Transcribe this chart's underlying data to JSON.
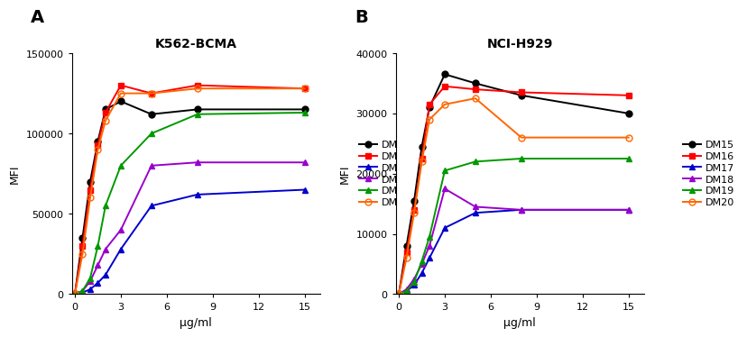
{
  "panel_A": {
    "title": "K562-BCMA",
    "xlabel": "μg/ml",
    "ylabel": "MFI",
    "ylim": [
      0,
      150000
    ],
    "yticks": [
      0,
      50000,
      100000,
      150000
    ],
    "xlim": [
      -0.2,
      16
    ],
    "xticks": [
      0,
      3,
      6,
      9,
      12,
      15
    ],
    "xdata": [
      0,
      0.5,
      1,
      1.5,
      2,
      3,
      5,
      8,
      15
    ],
    "series": [
      {
        "label": "DM15",
        "color": "#000000",
        "marker": "o",
        "filled": true,
        "values": [
          0,
          35000,
          70000,
          95000,
          115000,
          120000,
          112000,
          115000,
          115000
        ]
      },
      {
        "label": "DM16",
        "color": "#ff0000",
        "marker": "s",
        "filled": true,
        "values": [
          0,
          30000,
          65000,
          93000,
          113000,
          130000,
          125000,
          130000,
          128000
        ]
      },
      {
        "label": "DM17",
        "color": "#0000cc",
        "marker": "^",
        "filled": true,
        "values": [
          0,
          1000,
          3000,
          7000,
          12000,
          28000,
          55000,
          62000,
          65000
        ]
      },
      {
        "label": "DM18",
        "color": "#9900cc",
        "marker": "^",
        "filled": true,
        "values": [
          0,
          2000,
          8000,
          18000,
          28000,
          40000,
          80000,
          82000,
          82000
        ]
      },
      {
        "label": "DM19",
        "color": "#009900",
        "marker": "^",
        "filled": true,
        "values": [
          0,
          2000,
          10000,
          30000,
          55000,
          80000,
          100000,
          112000,
          113000
        ]
      },
      {
        "label": "DM20",
        "color": "#ff6600",
        "marker": "o",
        "filled": false,
        "values": [
          0,
          25000,
          60000,
          90000,
          108000,
          125000,
          125000,
          128000,
          128000
        ]
      }
    ]
  },
  "panel_B": {
    "title": "NCI-H929",
    "xlabel": "μg/ml",
    "ylabel": "MFI",
    "ylim": [
      0,
      40000
    ],
    "yticks": [
      0,
      10000,
      20000,
      30000,
      40000
    ],
    "xlim": [
      -0.2,
      16
    ],
    "xticks": [
      0,
      3,
      6,
      9,
      12,
      15
    ],
    "xdata": [
      0,
      0.5,
      1,
      1.5,
      2,
      3,
      5,
      8,
      15
    ],
    "series": [
      {
        "label": "DM15",
        "color": "#000000",
        "marker": "o",
        "filled": true,
        "values": [
          0,
          8000,
          15500,
          24500,
          31000,
          36500,
          35000,
          33000,
          30000
        ]
      },
      {
        "label": "DM16",
        "color": "#ff0000",
        "marker": "s",
        "filled": true,
        "values": [
          0,
          7000,
          14000,
          22500,
          31500,
          34500,
          34000,
          33500,
          33000
        ]
      },
      {
        "label": "DM17",
        "color": "#0000cc",
        "marker": "^",
        "filled": true,
        "values": [
          0,
          500,
          1500,
          3500,
          6000,
          11000,
          13500,
          14000,
          14000
        ]
      },
      {
        "label": "DM18",
        "color": "#9900cc",
        "marker": "^",
        "filled": true,
        "values": [
          0,
          800,
          2500,
          5000,
          8000,
          17500,
          14500,
          14000,
          14000
        ]
      },
      {
        "label": "DM19",
        "color": "#009900",
        "marker": "^",
        "filled": true,
        "values": [
          0,
          500,
          2000,
          5500,
          9500,
          20500,
          22000,
          22500,
          22500
        ]
      },
      {
        "label": "DM20",
        "color": "#ff6600",
        "marker": "o",
        "filled": false,
        "values": [
          0,
          6000,
          13500,
          22000,
          29000,
          31500,
          32500,
          26000,
          26000
        ]
      }
    ]
  },
  "background_color": "#ffffff",
  "label_fontsize": 14,
  "title_fontsize": 10,
  "axis_fontsize": 9,
  "tick_fontsize": 8,
  "legend_fontsize": 8,
  "linewidth": 1.4,
  "markersize": 5
}
